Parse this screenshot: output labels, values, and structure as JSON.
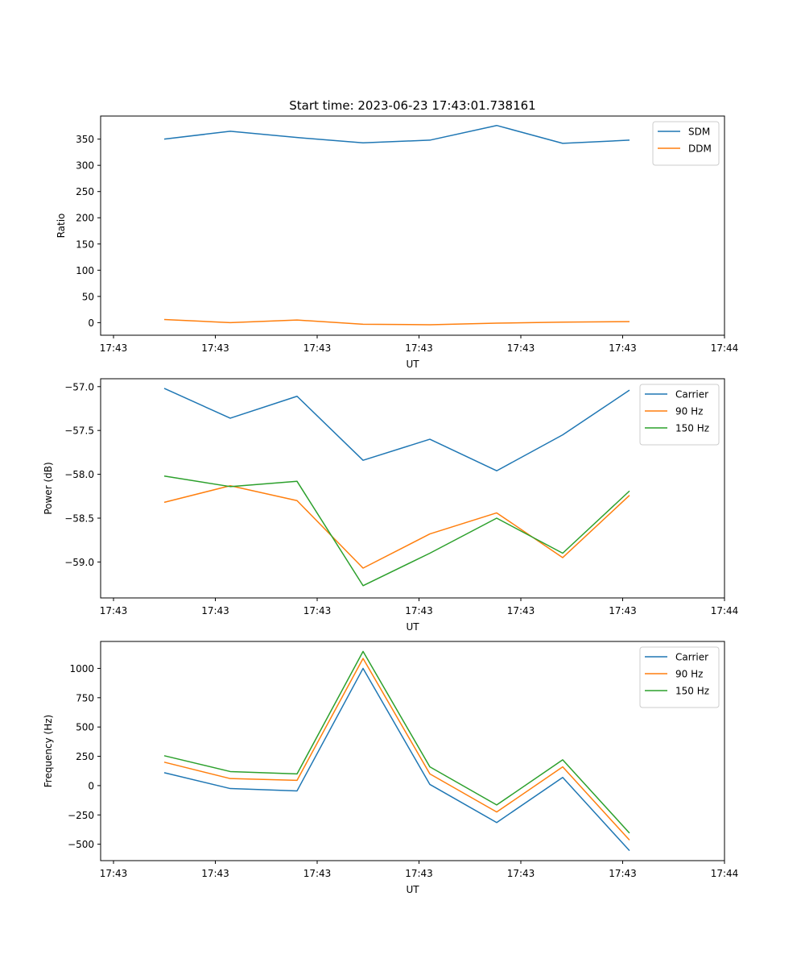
{
  "figure_title": "Start time: 2023-06-23 17:43:01.738161",
  "chart_data": [
    {
      "type": "line",
      "title": "Start time: 2023-06-23 17:43:01.738161",
      "xlabel": "UT",
      "ylabel": "Ratio",
      "x_tick_labels": [
        "17:43",
        "17:43",
        "17:43",
        "17:43",
        "17:43",
        "17:43",
        "17:44"
      ],
      "y_ticks": [
        0,
        50,
        100,
        150,
        200,
        250,
        300,
        350
      ],
      "ylim": [
        -24,
        394
      ],
      "legend_position": "top-right",
      "series": [
        {
          "name": "SDM",
          "color": "#1f77b4",
          "values": [
            350,
            365,
            353,
            343,
            348,
            376,
            342,
            348
          ]
        },
        {
          "name": "DDM",
          "color": "#ff7f0e",
          "values": [
            6,
            0,
            5,
            -3,
            -4,
            -1,
            1,
            2
          ]
        }
      ]
    },
    {
      "type": "line",
      "title": "",
      "xlabel": "UT",
      "ylabel": "Power (dB)",
      "x_tick_labels": [
        "17:43",
        "17:43",
        "17:43",
        "17:43",
        "17:43",
        "17:43",
        "17:44"
      ],
      "y_ticks": [
        -59.0,
        -58.5,
        -58.0,
        -57.5,
        -57.0
      ],
      "ylim": [
        -59.41,
        -56.91
      ],
      "legend_position": "top-right",
      "series": [
        {
          "name": "Carrier",
          "color": "#1f77b4",
          "values": [
            -57.02,
            -57.36,
            -57.11,
            -57.84,
            -57.6,
            -57.96,
            -57.55,
            -57.04
          ]
        },
        {
          "name": "90 Hz",
          "color": "#ff7f0e",
          "values": [
            -58.32,
            -58.13,
            -58.3,
            -59.07,
            -58.68,
            -58.44,
            -58.95,
            -58.24
          ]
        },
        {
          "name": "150 Hz",
          "color": "#2ca02c",
          "values": [
            -58.02,
            -58.14,
            -58.08,
            -59.27,
            -58.9,
            -58.5,
            -58.9,
            -58.19
          ]
        }
      ]
    },
    {
      "type": "line",
      "title": "",
      "xlabel": "UT",
      "ylabel": "Frequency (Hz)",
      "x_tick_labels": [
        "17:43",
        "17:43",
        "17:43",
        "17:43",
        "17:43",
        "17:43",
        "17:44"
      ],
      "y_ticks": [
        -500,
        -250,
        0,
        250,
        500,
        750,
        1000
      ],
      "ylim": [
        -640,
        1230
      ],
      "legend_position": "top-right",
      "series": [
        {
          "name": "Carrier",
          "color": "#1f77b4",
          "values": [
            110,
            -25,
            -45,
            1000,
            10,
            -315,
            70,
            -555
          ]
        },
        {
          "name": "90 Hz",
          "color": "#ff7f0e",
          "values": [
            200,
            60,
            45,
            1085,
            100,
            -225,
            160,
            -465
          ]
        },
        {
          "name": "150 Hz",
          "color": "#2ca02c",
          "values": [
            255,
            120,
            100,
            1145,
            160,
            -165,
            220,
            -405
          ]
        }
      ]
    }
  ]
}
